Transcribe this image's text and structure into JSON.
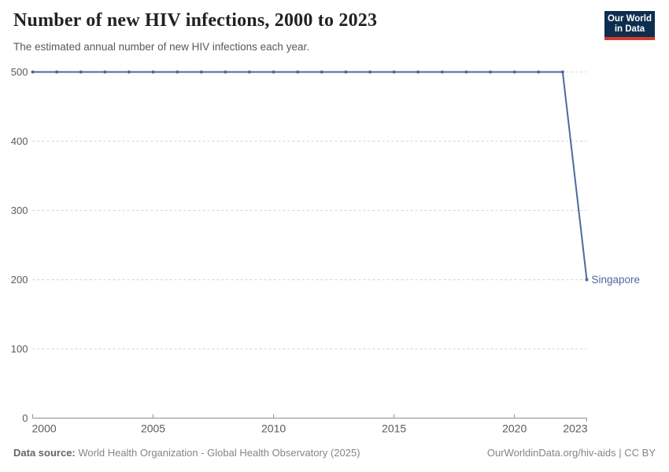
{
  "header": {
    "title": "Number of new HIV infections, 2000 to 2023",
    "subtitle": "The estimated annual number of new HIV infections each year."
  },
  "logo": {
    "line1": "Our World",
    "line2": "in Data",
    "bg_color": "#0d2e4e",
    "accent_color": "#d43b30"
  },
  "chart_data": {
    "type": "line",
    "title": "Number of new HIV infections, 2000 to 2023",
    "xlabel": "",
    "ylabel": "",
    "x": [
      2000,
      2001,
      2002,
      2003,
      2004,
      2005,
      2006,
      2007,
      2008,
      2009,
      2010,
      2011,
      2012,
      2013,
      2014,
      2015,
      2016,
      2017,
      2018,
      2019,
      2020,
      2021,
      2022,
      2023
    ],
    "series": [
      {
        "name": "Singapore",
        "values": [
          500,
          500,
          500,
          500,
          500,
          500,
          500,
          500,
          500,
          500,
          500,
          500,
          500,
          500,
          500,
          500,
          500,
          500,
          500,
          500,
          500,
          500,
          500,
          200
        ]
      }
    ],
    "xlim": [
      2000,
      2023
    ],
    "ylim": [
      0,
      500
    ],
    "yticks": [
      0,
      100,
      200,
      300,
      400,
      500
    ],
    "xticks": [
      2000,
      2005,
      2010,
      2015,
      2020,
      2023
    ],
    "grid": "dashed-horizontal",
    "legend_position": "end-of-line-label",
    "colors": {
      "line": "#4C6A9C",
      "grid": "#d9d9d9",
      "axis": "#8f8f8f",
      "tick_label": "#5b5b5b"
    }
  },
  "footer": {
    "source_label": "Data source:",
    "source_text": "World Health Organization - Global Health Observatory (2025)",
    "credit": "OurWorldinData.org/hiv-aids | CC BY"
  }
}
